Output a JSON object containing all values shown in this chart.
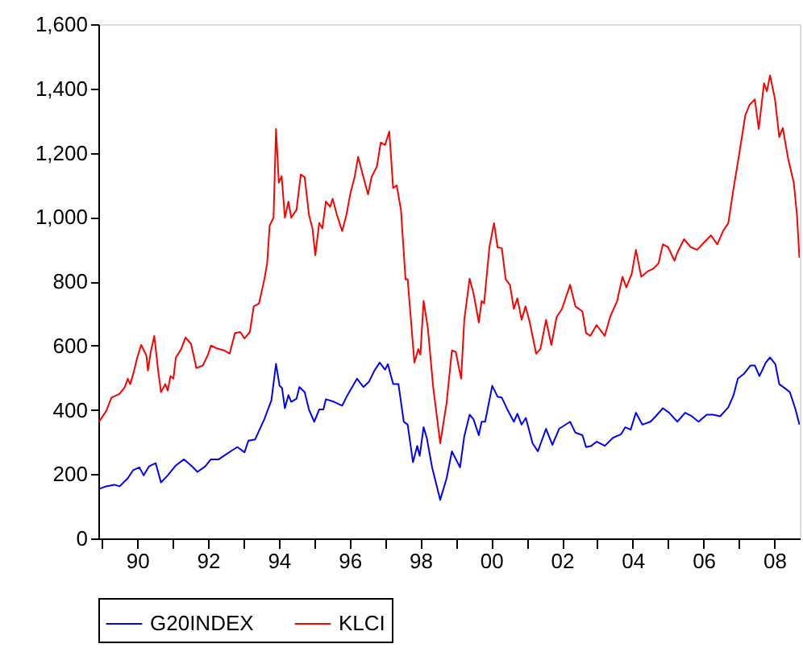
{
  "chart_data": {
    "type": "line",
    "series": [
      {
        "name": "G20INDEX",
        "color": "#0000ff",
        "x": [
          1988.92,
          1989.12,
          1989.35,
          1989.5,
          1989.73,
          1989.88,
          1990.06,
          1990.18,
          1990.33,
          1990.52,
          1990.67,
          1990.86,
          1991.09,
          1991.32,
          1991.55,
          1991.7,
          1991.92,
          1992.08,
          1992.3,
          1992.53,
          1992.68,
          1992.83,
          1993.03,
          1993.14,
          1993.33,
          1993.59,
          1993.79,
          1993.92,
          1994.02,
          1994.09,
          1994.17,
          1994.27,
          1994.35,
          1994.5,
          1994.58,
          1994.73,
          1994.85,
          1995.0,
          1995.14,
          1995.26,
          1995.33,
          1995.56,
          1995.79,
          1995.94,
          1996.21,
          1996.39,
          1996.55,
          1996.7,
          1996.85,
          1997.0,
          1997.08,
          1997.23,
          1997.38,
          1997.53,
          1997.64,
          1997.79,
          1997.91,
          1997.98,
          1998.09,
          1998.18,
          1998.33,
          1998.56,
          1998.74,
          1998.89,
          1999.12,
          1999.24,
          1999.39,
          1999.5,
          1999.65,
          1999.73,
          1999.83,
          2000.03,
          2000.18,
          2000.3,
          2000.48,
          2000.64,
          2000.74,
          2000.86,
          2000.98,
          2001.17,
          2001.32,
          2001.55,
          2001.73,
          2001.92,
          2002.23,
          2002.38,
          2002.58,
          2002.68,
          2002.83,
          2002.98,
          2003.21,
          2003.44,
          2003.67,
          2003.79,
          2003.94,
          2004.09,
          2004.27,
          2004.5,
          2004.65,
          2004.85,
          2005.03,
          2005.26,
          2005.48,
          2005.67,
          2005.86,
          2006.09,
          2006.27,
          2006.47,
          2006.7,
          2006.85,
          2006.97,
          2007.15,
          2007.33,
          2007.45,
          2007.58,
          2007.76,
          2007.88,
          2008.03,
          2008.14,
          2008.29,
          2008.44,
          2008.59,
          2008.71
        ],
        "values": [
          154,
          162,
          167,
          162,
          187,
          212,
          221,
          196,
          224,
          234,
          174,
          196,
          227,
          246,
          224,
          207,
          224,
          246,
          246,
          263,
          274,
          284,
          268,
          304,
          308,
          371,
          430,
          543,
          475,
          468,
          405,
          446,
          425,
          435,
          471,
          455,
          401,
          363,
          401,
          401,
          433,
          425,
          413,
          446,
          497,
          471,
          488,
          522,
          547,
          525,
          542,
          480,
          480,
          363,
          354,
          237,
          288,
          257,
          346,
          313,
          221,
          120,
          187,
          271,
          221,
          318,
          385,
          371,
          321,
          363,
          363,
          475,
          441,
          438,
          396,
          363,
          388,
          354,
          375,
          296,
          271,
          341,
          291,
          341,
          363,
          329,
          321,
          284,
          288,
          301,
          288,
          313,
          324,
          346,
          338,
          391,
          354,
          363,
          380,
          405,
          391,
          363,
          391,
          380,
          363,
          385,
          385,
          380,
          408,
          446,
          497,
          513,
          538,
          538,
          505,
          547,
          563,
          542,
          480,
          468,
          455,
          405,
          354
        ]
      },
      {
        "name": "KLCI",
        "color": "#ff0000",
        "x": [
          1988.92,
          1989.12,
          1989.27,
          1989.5,
          1989.65,
          1989.73,
          1989.8,
          1989.91,
          1990.0,
          1990.11,
          1990.26,
          1990.3,
          1990.38,
          1990.48,
          1990.59,
          1990.67,
          1990.79,
          1990.86,
          1990.94,
          1991.02,
          1991.09,
          1991.24,
          1991.36,
          1991.52,
          1991.67,
          1991.85,
          1992.0,
          1992.08,
          1992.23,
          1992.45,
          1992.61,
          1992.76,
          1992.91,
          1993.03,
          1993.18,
          1993.29,
          1993.44,
          1993.59,
          1993.67,
          1993.74,
          1993.85,
          1993.92,
          1994.0,
          1994.08,
          1994.17,
          1994.27,
          1994.35,
          1994.5,
          1994.62,
          1994.73,
          1994.85,
          1994.95,
          1995.03,
          1995.14,
          1995.23,
          1995.33,
          1995.45,
          1995.52,
          1995.64,
          1995.79,
          1995.91,
          1996.02,
          1996.14,
          1996.24,
          1996.39,
          1996.52,
          1996.62,
          1996.77,
          1996.88,
          1997.0,
          1997.12,
          1997.23,
          1997.33,
          1997.45,
          1997.58,
          1997.64,
          1997.83,
          1997.94,
          1998.0,
          1998.09,
          1998.21,
          1998.36,
          1998.56,
          1998.74,
          1998.89,
          1999.0,
          1999.15,
          1999.24,
          1999.39,
          1999.5,
          1999.65,
          1999.73,
          1999.8,
          1999.95,
          2000.08,
          2000.18,
          2000.3,
          2000.41,
          2000.53,
          2000.64,
          2000.74,
          2000.86,
          2000.97,
          2001.09,
          2001.27,
          2001.39,
          2001.55,
          2001.7,
          2001.85,
          2002.0,
          2002.23,
          2002.38,
          2002.58,
          2002.68,
          2002.8,
          2002.98,
          2003.21,
          2003.36,
          2003.56,
          2003.71,
          2003.82,
          2003.97,
          2004.09,
          2004.24,
          2004.42,
          2004.58,
          2004.73,
          2004.85,
          2005.0,
          2005.18,
          2005.26,
          2005.45,
          2005.64,
          2005.82,
          2006.06,
          2006.21,
          2006.39,
          2006.55,
          2006.7,
          2006.85,
          2007.0,
          2007.18,
          2007.3,
          2007.45,
          2007.56,
          2007.71,
          2007.79,
          2007.88,
          2008.02,
          2008.14,
          2008.24,
          2008.39,
          2008.55,
          2008.64,
          2008.71
        ],
        "values": [
          363,
          396,
          438,
          450,
          471,
          497,
          480,
          522,
          563,
          602,
          568,
          522,
          580,
          630,
          522,
          455,
          480,
          460,
          505,
          497,
          563,
          589,
          625,
          605,
          530,
          538,
          572,
          600,
          592,
          585,
          575,
          639,
          642,
          622,
          642,
          722,
          731,
          806,
          856,
          973,
          998,
          1274,
          1107,
          1127,
          998,
          1048,
          998,
          1023,
          1132,
          1124,
          1007,
          965,
          881,
          981,
          965,
          1048,
          1032,
          1057,
          1007,
          956,
          1007,
          1073,
          1124,
          1187,
          1124,
          1070,
          1124,
          1157,
          1232,
          1224,
          1266,
          1090,
          1098,
          1023,
          806,
          806,
          547,
          589,
          572,
          739,
          655,
          472,
          296,
          421,
          585,
          580,
          497,
          680,
          808,
          763,
          672,
          739,
          731,
          906,
          981,
          906,
          903,
          806,
          789,
          714,
          747,
          680,
          722,
          672,
          575,
          589,
          680,
          602,
          689,
          714,
          789,
          722,
          706,
          639,
          630,
          664,
          630,
          689,
          739,
          814,
          781,
          823,
          898,
          814,
          831,
          839,
          856,
          915,
          906,
          864,
          889,
          931,
          906,
          898,
          926,
          943,
          915,
          956,
          981,
          1090,
          1190,
          1316,
          1349,
          1366,
          1274,
          1416,
          1391,
          1441,
          1366,
          1249,
          1277,
          1182,
          1107,
          1007,
          873
        ]
      }
    ],
    "xlim": [
      1988.9,
      2008.72
    ],
    "xticks": [
      {
        "value": 1989,
        "label": null
      },
      {
        "value": 1990,
        "label": "90"
      },
      {
        "value": 1991,
        "label": null
      },
      {
        "value": 1992,
        "label": "92"
      },
      {
        "value": 1993,
        "label": null
      },
      {
        "value": 1994,
        "label": "94"
      },
      {
        "value": 1995,
        "label": null
      },
      {
        "value": 1996,
        "label": "96"
      },
      {
        "value": 1997,
        "label": null
      },
      {
        "value": 1998,
        "label": "98"
      },
      {
        "value": 1999,
        "label": null
      },
      {
        "value": 2000,
        "label": "00"
      },
      {
        "value": 2001,
        "label": null
      },
      {
        "value": 2002,
        "label": "02"
      },
      {
        "value": 2003,
        "label": null
      },
      {
        "value": 2004,
        "label": "04"
      },
      {
        "value": 2005,
        "label": null
      },
      {
        "value": 2006,
        "label": "06"
      },
      {
        "value": 2007,
        "label": null
      },
      {
        "value": 2008,
        "label": "08"
      }
    ],
    "ylim": [
      0,
      1600
    ],
    "yticks": [
      0,
      200,
      400,
      600,
      800,
      {
        "value": 1000,
        "label": "1,000"
      },
      {
        "value": 1200,
        "label": "1,200"
      },
      {
        "value": 1400,
        "label": "1,400"
      },
      {
        "value": 1600,
        "label": "1,600"
      }
    ],
    "grid": false,
    "legend": "bottom",
    "line_style": "solid",
    "marker": "none"
  }
}
